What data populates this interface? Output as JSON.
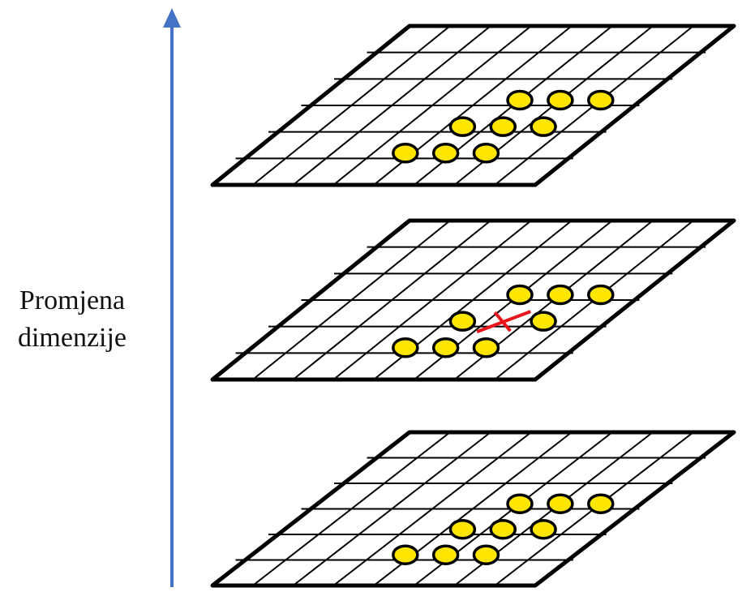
{
  "axis": {
    "label_line1": "Promjena",
    "label_line2": "dimenzije",
    "color": "#4472C4"
  },
  "layers": [
    {
      "id": "upper",
      "has_cross": false
    },
    {
      "id": "middle",
      "has_cross": true
    },
    {
      "id": "lower",
      "has_cross": false
    }
  ],
  "grid": {
    "columns": 8,
    "rows": 6
  },
  "colors": {
    "grid_line": "#000000",
    "point_fill": "#FFE600",
    "point_stroke": "#000000",
    "cross": "#E8141B",
    "background": "#FFFFFF"
  }
}
